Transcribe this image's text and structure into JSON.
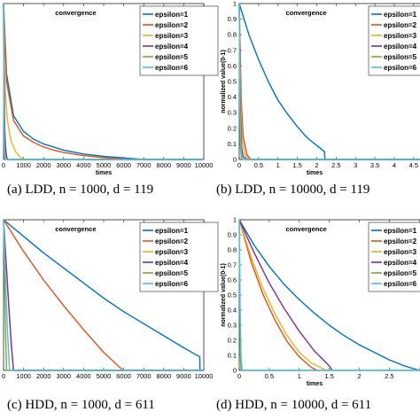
{
  "figure": {
    "captions": [
      "(a)  LDD, n = 1000, d = 119",
      "(b)  LDD, n = 10000, d = 119",
      "(c)  HDD, n = 1000, d = 611",
      "(d)  HDD, n = 10000, d = 611"
    ]
  },
  "colors": {
    "epsilon=1": "#0072BD",
    "epsilon=2": "#D95319",
    "epsilon=3": "#EDB120",
    "epsilon=4": "#7E2F8E",
    "epsilon=5": "#77AC30",
    "epsilon=6": "#4DBEEE"
  },
  "chart_data": [
    {
      "type": "line",
      "title": "convergence",
      "xlabel": "times",
      "ylabel": "",
      "xlim": [
        0,
        10000
      ],
      "ylim": [
        0,
        1
      ],
      "xticks": [
        0,
        1000,
        2000,
        3000,
        4000,
        5000,
        6000,
        7000,
        8000,
        9000,
        10000
      ],
      "xtick_labels": [
        "0",
        "1000",
        "2000",
        "3000",
        "4000",
        "5000",
        "6000",
        "7000",
        "8000",
        "9000",
        "10000"
      ],
      "yticks": [],
      "ytick_labels": [],
      "legend": "top-right",
      "series": [
        {
          "name": "epsilon=1",
          "x": [
            0,
            150,
            500,
            1000,
            1500,
            2000,
            2500,
            3000,
            4000,
            5000,
            6000,
            7000,
            8000,
            10000
          ],
          "y": [
            1.0,
            0.55,
            0.28,
            0.18,
            0.13,
            0.1,
            0.08,
            0.06,
            0.035,
            0.02,
            0.01,
            0.0,
            0.0,
            0.0
          ]
        },
        {
          "name": "epsilon=2",
          "x": [
            0,
            150,
            500,
            1000,
            1500,
            2000,
            2500,
            3000,
            4000,
            5000,
            6000,
            6500,
            10000
          ],
          "y": [
            1.0,
            0.5,
            0.25,
            0.15,
            0.11,
            0.08,
            0.06,
            0.045,
            0.025,
            0.012,
            0.004,
            0.0,
            0.0
          ]
        },
        {
          "name": "epsilon=3",
          "x": [
            0,
            50,
            100,
            200,
            300,
            400,
            600,
            800,
            1000,
            10000
          ],
          "y": [
            1.0,
            0.55,
            0.4,
            0.25,
            0.17,
            0.11,
            0.05,
            0.02,
            0.0,
            0.0
          ]
        },
        {
          "name": "epsilon=4",
          "x": [
            0,
            30,
            60,
            100,
            150,
            200,
            10000
          ],
          "y": [
            1.0,
            0.45,
            0.2,
            0.08,
            0.02,
            0.0,
            0.0
          ]
        },
        {
          "name": "epsilon=5",
          "x": [
            0,
            20,
            40,
            70,
            100,
            10000
          ],
          "y": [
            1.0,
            0.35,
            0.12,
            0.03,
            0.0,
            0.0
          ]
        },
        {
          "name": "epsilon=6",
          "x": [
            0,
            15,
            30,
            50,
            80,
            10000
          ],
          "y": [
            1.0,
            0.3,
            0.08,
            0.02,
            0.0,
            0.0
          ]
        }
      ]
    },
    {
      "type": "line",
      "title": "convergence",
      "xlabel": "times",
      "ylabel": "normalized value(0-1)",
      "xlim": [
        0,
        4.8
      ],
      "ylim": [
        0,
        1
      ],
      "xticks": [
        0,
        0.5,
        1,
        1.5,
        2,
        2.5,
        3,
        3.5,
        4,
        4.5
      ],
      "xtick_labels": [
        "0",
        "0.5",
        "1",
        "1.5",
        "2",
        "2.5",
        "3",
        "3.5",
        "4",
        "4.5"
      ],
      "yticks": [
        0,
        0.1,
        0.2,
        0.3,
        0.4,
        0.5,
        0.6,
        0.7,
        0.8,
        0.9,
        1
      ],
      "ytick_labels": [
        "0",
        "0.1",
        "0.2",
        "0.3",
        "0.4",
        "0.5",
        "0.6",
        "0.7",
        "0.8",
        "0.9",
        "1"
      ],
      "legend": "top-right",
      "series": [
        {
          "name": "epsilon=1",
          "x": [
            0,
            0.25,
            0.5,
            0.75,
            1.0,
            1.25,
            1.5,
            1.75,
            2.0,
            2.2,
            2.21,
            4.8
          ],
          "y": [
            1.0,
            0.8,
            0.64,
            0.5,
            0.38,
            0.29,
            0.21,
            0.14,
            0.09,
            0.05,
            0.0,
            0.0
          ]
        },
        {
          "name": "epsilon=2",
          "x": [
            0,
            0.05,
            0.1,
            0.2,
            0.3,
            4.8
          ],
          "y": [
            1.0,
            0.4,
            0.15,
            0.03,
            0.0,
            0.0
          ]
        },
        {
          "name": "epsilon=3",
          "x": [
            0,
            0.04,
            0.08,
            0.15,
            0.25,
            4.8
          ],
          "y": [
            1.0,
            0.35,
            0.12,
            0.03,
            0.0,
            0.0
          ]
        },
        {
          "name": "epsilon=4",
          "x": [
            0,
            0.03,
            0.06,
            0.1,
            0.2,
            4.8
          ],
          "y": [
            1.0,
            0.3,
            0.08,
            0.02,
            0.0,
            0.0
          ]
        },
        {
          "name": "epsilon=5",
          "x": [
            0,
            0.015,
            0.03,
            0.06,
            4.8
          ],
          "y": [
            1.0,
            0.4,
            0.08,
            0.0,
            0.0
          ]
        },
        {
          "name": "epsilon=6",
          "x": [
            0,
            0.02,
            0.05,
            0.1,
            4.8
          ],
          "y": [
            1.0,
            0.3,
            0.05,
            0.0,
            0.0
          ]
        }
      ]
    },
    {
      "type": "line",
      "title": "convergence",
      "xlabel": "",
      "ylabel": "",
      "xlim": [
        0,
        10000
      ],
      "ylim": [
        0,
        1
      ],
      "xticks": [
        0,
        1000,
        2000,
        3000,
        4000,
        5000,
        6000,
        7000,
        8000,
        9000,
        10000
      ],
      "xtick_labels": [
        "0",
        "1000",
        "2000",
        "3000",
        "4000",
        "5000",
        "6000",
        "7000",
        "8000",
        "9000",
        "10000"
      ],
      "yticks": [],
      "ytick_labels": [],
      "legend": "top-right",
      "series": [
        {
          "name": "epsilon=1",
          "x": [
            0,
            1000,
            2000,
            3000,
            4000,
            5000,
            6000,
            7000,
            8000,
            9000,
            9800,
            9810,
            10000
          ],
          "y": [
            1.0,
            0.89,
            0.78,
            0.68,
            0.58,
            0.48,
            0.39,
            0.31,
            0.23,
            0.15,
            0.09,
            0.0,
            0.0
          ]
        },
        {
          "name": "epsilon=2",
          "x": [
            0,
            1000,
            2000,
            3000,
            4000,
            5000,
            5800,
            6000,
            10000
          ],
          "y": [
            1.0,
            0.79,
            0.6,
            0.43,
            0.27,
            0.12,
            0.02,
            0.0,
            0.0
          ]
        },
        {
          "name": "epsilon=3",
          "x": [
            0,
            100,
            200,
            300,
            400,
            500,
            10000
          ],
          "y": [
            1.0,
            0.78,
            0.56,
            0.35,
            0.15,
            0.0,
            0.0
          ]
        },
        {
          "name": "epsilon=4",
          "x": [
            0,
            100,
            200,
            300,
            400,
            500,
            10000
          ],
          "y": [
            1.0,
            0.78,
            0.56,
            0.35,
            0.15,
            0.0,
            0.0
          ]
        },
        {
          "name": "epsilon=5",
          "x": [
            0,
            50,
            100,
            150,
            10000
          ],
          "y": [
            1.0,
            0.6,
            0.25,
            0.0,
            0.0
          ]
        },
        {
          "name": "epsilon=6",
          "x": [
            0,
            100,
            200,
            300,
            10000
          ],
          "y": [
            1.0,
            0.6,
            0.25,
            0.0,
            0.0
          ]
        }
      ]
    },
    {
      "type": "line",
      "title": "convergence",
      "xlabel": "times",
      "ylabel": "normalized value(0-1)",
      "xlim": [
        0,
        3.1
      ],
      "ylim": [
        0,
        1
      ],
      "xticks": [
        0,
        0.5,
        1,
        1.5,
        2,
        2.5,
        3
      ],
      "xtick_labels": [
        "0",
        "0.5",
        "1",
        "1.5",
        "2",
        "2.5",
        "3"
      ],
      "yticks": [
        0,
        0.1,
        0.2,
        0.3,
        0.4,
        0.5,
        0.6,
        0.7,
        0.8,
        0.9,
        1
      ],
      "ytick_labels": [
        "0",
        "0.1",
        "0.2",
        "0.3",
        "0.4",
        "0.5",
        "0.6",
        "0.7",
        "0.8",
        "0.9",
        "1"
      ],
      "legend": "top-right",
      "series": [
        {
          "name": "epsilon=1",
          "x": [
            0,
            0.25,
            0.5,
            0.75,
            1.0,
            1.25,
            1.5,
            1.75,
            2.0,
            2.25,
            2.5,
            2.75,
            3.0
          ],
          "y": [
            1.0,
            0.83,
            0.69,
            0.57,
            0.47,
            0.38,
            0.3,
            0.23,
            0.17,
            0.12,
            0.07,
            0.03,
            0.0
          ]
        },
        {
          "name": "epsilon=2",
          "x": [
            0,
            0.2,
            0.4,
            0.6,
            0.8,
            1.0,
            1.2,
            1.3
          ],
          "y": [
            1.0,
            0.72,
            0.5,
            0.33,
            0.19,
            0.09,
            0.02,
            0.0
          ]
        },
        {
          "name": "epsilon=3",
          "x": [
            0,
            0.2,
            0.4,
            0.6,
            0.8,
            1.0,
            1.2,
            1.4,
            1.45
          ],
          "y": [
            1.0,
            0.75,
            0.54,
            0.37,
            0.23,
            0.12,
            0.05,
            0.01,
            0.0
          ]
        },
        {
          "name": "epsilon=4",
          "x": [
            0,
            0.25,
            0.5,
            0.75,
            1.0,
            1.25,
            1.5,
            1.55
          ],
          "y": [
            1.0,
            0.78,
            0.58,
            0.41,
            0.26,
            0.13,
            0.03,
            0.0
          ]
        },
        {
          "name": "epsilon=5",
          "x": [
            0,
            0.01,
            0.02,
            0.03,
            3.1
          ],
          "y": [
            1.0,
            0.5,
            0.1,
            0.0,
            0.0
          ]
        },
        {
          "name": "epsilon=6",
          "x": [
            0,
            0.015,
            0.03,
            0.05,
            3.1
          ],
          "y": [
            1.0,
            0.4,
            0.08,
            0.0,
            0.0
          ]
        }
      ]
    }
  ]
}
